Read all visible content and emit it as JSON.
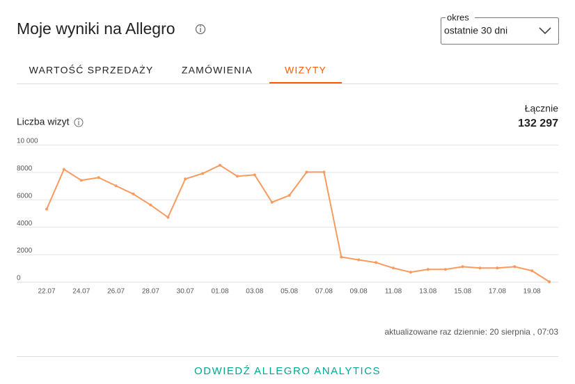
{
  "header": {
    "title": "Moje wyniki na Allegro",
    "period_label": "okres",
    "period_value": "ostatnie 30 dni"
  },
  "tabs": [
    "WARTOŚĆ SPRZEDAŻY",
    "ZAMÓWIENIA",
    "WIZYTY"
  ],
  "active_tab": 2,
  "summary": {
    "label": "Łącznie",
    "total": "132 297"
  },
  "chart_data": {
    "type": "line",
    "y_label": "Liczba wizyt",
    "color": "#f99a5f",
    "categories": [
      "22.07",
      null,
      "24.07",
      null,
      "26.07",
      null,
      "28.07",
      null,
      "30.07",
      null,
      "01.08",
      null,
      "03.08",
      null,
      "05.08",
      null,
      "07.08",
      null,
      "09.08",
      null,
      "11.08",
      null,
      "13.08",
      null,
      "15.08",
      null,
      "17.08",
      null,
      "19.08",
      null
    ],
    "values": [
      5300,
      8200,
      7400,
      7600,
      7000,
      6400,
      5600,
      4700,
      7500,
      7900,
      8500,
      7700,
      7800,
      5800,
      6300,
      8000,
      8000,
      1800,
      1600,
      1400,
      1000,
      700,
      900,
      900,
      1100,
      1000,
      1000,
      1100,
      800,
      0
    ],
    "ylim": [
      0,
      10000
    ],
    "yticks": [
      0,
      2000,
      4000,
      6000,
      8000,
      {
        "value": 10000,
        "label": "10 000"
      }
    ],
    "grid": true
  },
  "footer": {
    "update_note": "aktualizowane raz dziennie: 20 sierpnia , 07:03",
    "link": "ODWIEDŹ ALLEGRO ANALYTICS"
  }
}
